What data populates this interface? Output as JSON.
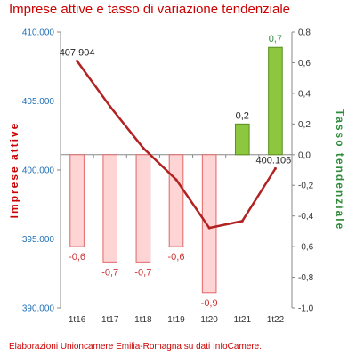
{
  "title": "Imprese attive e tasso di variazione tendenziale",
  "source": "Elaborazioni Unioncamere Emilia-Romagna su dati InfoCamere.",
  "chart_data": {
    "type": "bar",
    "categories": [
      "1t16",
      "1t17",
      "1t18",
      "1t19",
      "1t20",
      "1t21",
      "1t22"
    ],
    "series": [
      {
        "name": "Imprese attive",
        "type": "line",
        "axis": "left",
        "color": "#b22222",
        "values": [
          407904,
          404600,
          401600,
          399300,
          395800,
          396300,
          400106
        ],
        "labels": [
          "407.904",
          "",
          "",
          "",
          "",
          "",
          "400.106"
        ]
      },
      {
        "name": "Tasso tendenziale",
        "type": "bar",
        "axis": "right",
        "values": [
          -0.6,
          -0.7,
          -0.7,
          -0.6,
          -0.9,
          0.2,
          0.7
        ],
        "labels": [
          "-0,6",
          "-0,7",
          "-0,7",
          "-0,6",
          "-0,9",
          "0,2",
          "0,7"
        ],
        "negative_fill": "#ffd4d4",
        "negative_stroke": "#e06666",
        "positive_fill": "#8dc63f",
        "positive_stroke": "#5a8f1e"
      }
    ],
    "left_axis": {
      "label": "Imprese attive",
      "min": 390000,
      "max": 410000,
      "ticks": [
        390000,
        395000,
        400000,
        405000,
        410000
      ],
      "tick_labels": [
        "390.000",
        "395.000",
        "400.000",
        "405.000",
        "410.000"
      ],
      "color": "#1f6fb5"
    },
    "right_axis": {
      "label": "Tasso tendenziale",
      "min": -1.0,
      "max": 0.8,
      "ticks": [
        -1.0,
        -0.8,
        -0.6,
        -0.4,
        -0.2,
        0.0,
        0.2,
        0.4,
        0.6,
        0.8
      ],
      "tick_labels": [
        "-1,0",
        "-0,8",
        "-0,6",
        "-0,4",
        "-0,2",
        "0,0",
        "0,2",
        "0,4",
        "0,6",
        "0,8"
      ],
      "color": "#2e8b3a"
    },
    "colors": {
      "title": "#cc0000",
      "left_axis_title": "#cc0000",
      "right_axis_title": "#2e8b3a",
      "negative_label": "#cc3333",
      "positive_label": "#2e8b3a",
      "line_label": "#222222"
    },
    "grid": false,
    "legend": "none"
  }
}
